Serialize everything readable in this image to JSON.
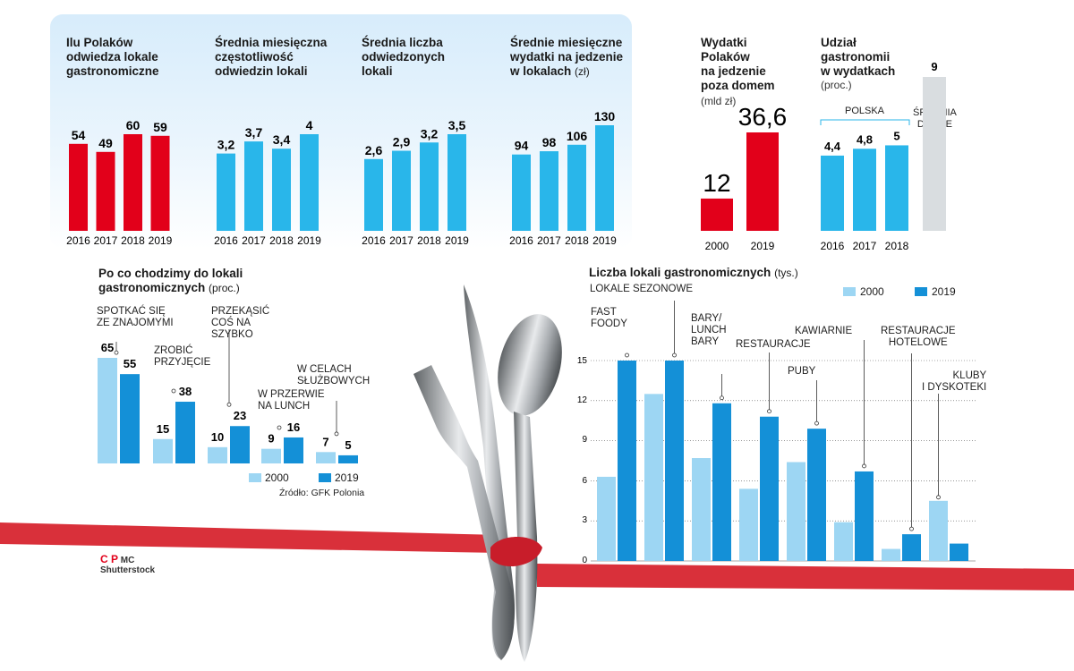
{
  "colors": {
    "red": "#e2001a",
    "blue": "#29b6ea",
    "light_blue": "#9dd6f3",
    "mid_blue": "#1490d7",
    "grey": "#d9dde0",
    "ribbon": "#d9303a"
  },
  "chart_data": [
    {
      "id": "visitors",
      "type": "bar",
      "title": "Ilu Polaków\nodwiedza lokale\ngastronomiczne",
      "unit": "",
      "categories": [
        "2016",
        "2017",
        "2018",
        "2019"
      ],
      "values": [
        54,
        49,
        60,
        59
      ],
      "value_labels": [
        "54",
        "49",
        "60",
        "59"
      ],
      "color": "red"
    },
    {
      "id": "frequency",
      "type": "bar",
      "title": "Średnia miesięczna\nczęstotliwość\nodwiedzin lokali",
      "unit": "",
      "categories": [
        "2016",
        "2017",
        "2018",
        "2019"
      ],
      "values": [
        3.2,
        3.7,
        3.4,
        4
      ],
      "value_labels": [
        "3,2",
        "3,7",
        "3,4",
        "4"
      ],
      "color": "blue"
    },
    {
      "id": "venues",
      "type": "bar",
      "title": "Średnia liczba\nodwiedzonych\nlokali",
      "unit": "",
      "categories": [
        "2016",
        "2017",
        "2018",
        "2019"
      ],
      "values": [
        2.6,
        2.9,
        3.2,
        3.5
      ],
      "value_labels": [
        "2,6",
        "2,9",
        "3,2",
        "3,5"
      ],
      "color": "blue"
    },
    {
      "id": "monthly_spend",
      "type": "bar",
      "title": "Średnie miesięczne\nwydatki na jedzenie\nw lokalach",
      "unit": "(zł)",
      "categories": [
        "2016",
        "2017",
        "2018",
        "2019"
      ],
      "values": [
        94,
        98,
        106,
        130
      ],
      "value_labels": [
        "94",
        "98",
        "106",
        "130"
      ],
      "color": "blue"
    },
    {
      "id": "spend_outside",
      "type": "bar",
      "title": "Wydatki\nPolaków\nna jedzenie\npoza domem",
      "subtitle": "(mld zł)",
      "categories": [
        "2000",
        "2019"
      ],
      "values": [
        12,
        36.6
      ],
      "value_labels": [
        "12",
        "36,6"
      ],
      "color": "red"
    },
    {
      "id": "share",
      "type": "bar",
      "title": "Udział\ngastronomii\nw wydatkach",
      "subtitle": "(proc.)",
      "group_label": "POLSKA",
      "categories": [
        "2016",
        "2017",
        "2018"
      ],
      "values": [
        4.4,
        4.8,
        5
      ],
      "value_labels": [
        "4,4",
        "4,8",
        "5"
      ],
      "color": "blue",
      "reference": {
        "label": "ŚREDNIA\nDLA UE",
        "value": 9,
        "value_label": "9",
        "color": "grey"
      }
    },
    {
      "id": "reasons",
      "type": "bar",
      "title": "Po co chodzimy do lokali\ngastronomicznych",
      "unit": "(proc.)",
      "categories": [
        "SPOTKAĆ SIĘ\nZE ZNAJOMYMI",
        "ZROBIĆ\nPRZYJĘCIE",
        "PRZEKĄSIĆ\nCOŚ NA\nSZYBKO",
        "W PRZERWIE\nNA LUNCH",
        "W CELACH\nSŁUŻBOWYCH"
      ],
      "series": [
        {
          "name": "2000",
          "values": [
            65,
            15,
            10,
            9,
            7
          ],
          "value_labels": [
            "65",
            "15",
            "10",
            "9",
            "7"
          ],
          "color": "light_blue"
        },
        {
          "name": "2019",
          "values": [
            55,
            38,
            23,
            16,
            5
          ],
          "value_labels": [
            "55",
            "38",
            "23",
            "16",
            "5"
          ],
          "color": "mid_blue"
        }
      ],
      "source": "Źródło: GFK Polonia"
    },
    {
      "id": "venue_counts",
      "type": "bar",
      "title": "Liczba lokali gastronomicznych",
      "unit": "(tys.)",
      "categories": [
        "FAST\nFOODY",
        "LOKALE SEZONOWE",
        "BARY/\nLUNCH\nBARY",
        "RESTAURACJE",
        "PUBY",
        "KAWIARNIE",
        "RESTAURACJE\nHOTELOWE",
        "KLUBY\nI DYSKOTEKI"
      ],
      "y_ticks": [
        "15",
        "12",
        "9",
        "6",
        "3",
        "0"
      ],
      "ylim": [
        0,
        15
      ],
      "grid": true,
      "series": [
        {
          "name": "2000",
          "values": [
            6.3,
            12.5,
            7.7,
            5.4,
            7.4,
            2.9,
            0.9,
            4.5
          ],
          "color": "light_blue"
        },
        {
          "name": "2019",
          "values": [
            15,
            15,
            11.8,
            10.8,
            9.9,
            6.7,
            2.0,
            1.3
          ],
          "color": "mid_blue"
        }
      ]
    }
  ],
  "credits": {
    "cp": "C P",
    "mc": "MC",
    "shutterstock": "Shutterstock"
  }
}
